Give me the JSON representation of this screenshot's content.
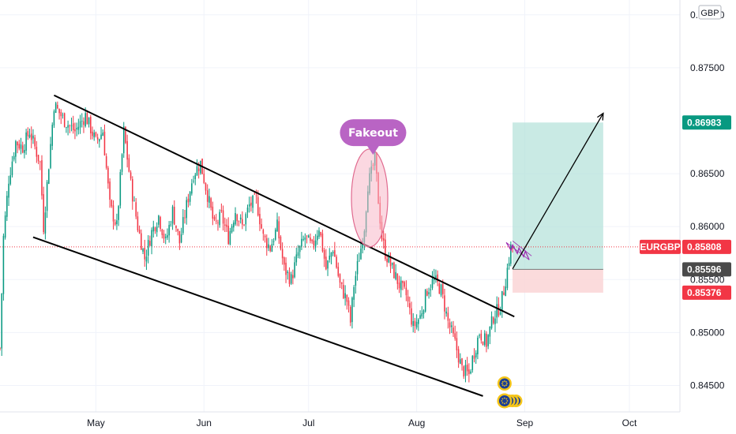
{
  "chart_data": {
    "type": "candlestick",
    "symbol": "EURGBP",
    "currency": "GBP",
    "ylim": [
      0.8425,
      0.8814
    ],
    "y_ticks": [
      {
        "label": "0.88000",
        "value": 0.88
      },
      {
        "label": "0.87500",
        "value": 0.875
      },
      {
        "label": "0.86500",
        "value": 0.865
      },
      {
        "label": "0.86000",
        "value": 0.86
      },
      {
        "label": "0.85500",
        "value": 0.855
      },
      {
        "label": "0.85000",
        "value": 0.85
      },
      {
        "label": "0.84500",
        "value": 0.845
      }
    ],
    "x_ticks": [
      {
        "label": "May",
        "day": 29
      },
      {
        "label": "Jun",
        "day": 60
      },
      {
        "label": "Jul",
        "day": 90
      },
      {
        "label": "Aug",
        "day": 121
      },
      {
        "label": "Sep",
        "day": 152
      },
      {
        "label": "Oct",
        "day": 182
      }
    ],
    "xlim": [
      1.5,
      196.5
    ],
    "current_price": {
      "label": "EURGBP",
      "value": "0.85808",
      "y": 0.85808,
      "color": "#f23645"
    },
    "price_tags": [
      {
        "value": "0.86983",
        "y": 0.86983,
        "color": "#089981"
      },
      {
        "value": "0.85596",
        "y": 0.85596,
        "color": "#4a4a4a"
      },
      {
        "value": "0.85376",
        "y": 0.85376,
        "color": "#f23645"
      }
    ],
    "position": {
      "entry": 0.85596,
      "target": 0.86983,
      "stop": 0.85376,
      "x_start_day": 148.5,
      "x_end_day": 174.5,
      "profit_color": "#b7e3db",
      "loss_color": "#fad5d6"
    },
    "channel_lines": [
      {
        "from": {
          "day": 17,
          "y": 0.8724
        },
        "to": {
          "day": 149,
          "y": 0.8515
        }
      },
      {
        "from": {
          "day": 11,
          "y": 0.859
        },
        "to": {
          "day": 140,
          "y": 0.844
        }
      }
    ],
    "projection_arrow": {
      "from": {
        "day": 148.5,
        "y": 0.856
      },
      "to": {
        "day": 174.5,
        "y": 0.8707
      }
    },
    "annotation": {
      "text": "Fakeout",
      "x_day": 108.5,
      "y": 0.8688,
      "color": "#b964c4"
    },
    "highlight_ellipse": {
      "x_day": 107.5,
      "y": 0.8627,
      "color": "#f7b8c8"
    },
    "candles": [],
    "colors": {
      "up": "#089981",
      "down": "#f23645"
    }
  }
}
